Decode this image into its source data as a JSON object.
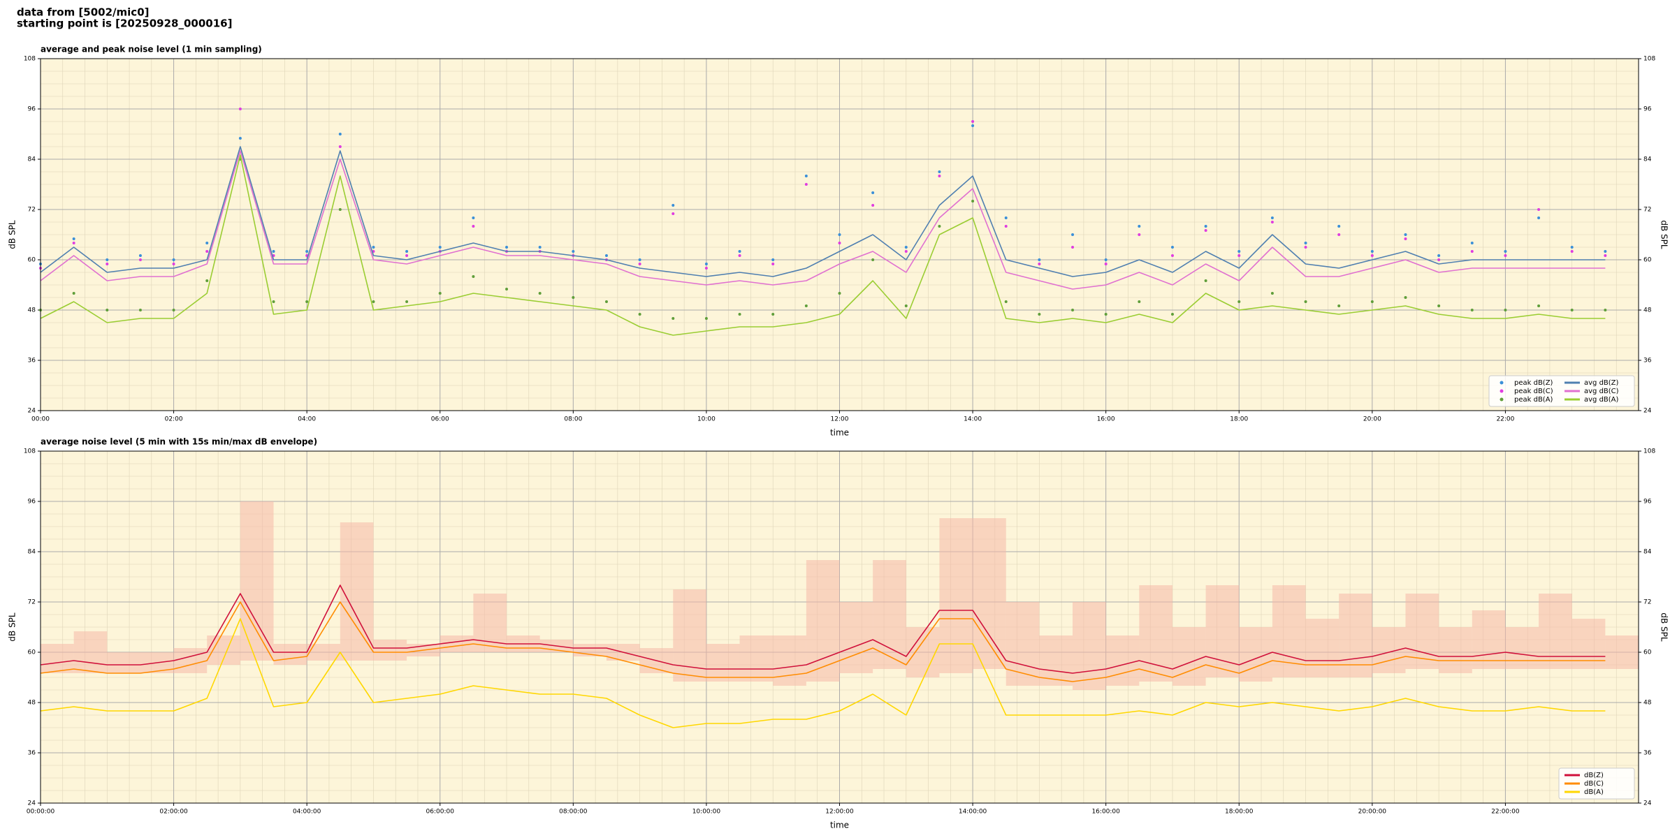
{
  "header": [
    "data from [5002/mic0]",
    "starting point is [20250928_000016]"
  ],
  "chart_data": [
    {
      "type": "line",
      "title": "average and peak noise level (1 min sampling)",
      "x_label": "time",
      "y_label": "dB SPL",
      "background": "#fdf5d9",
      "grid": true,
      "minor_grid": true,
      "legend": "lower right",
      "xlim": [
        "00:00",
        "24:00"
      ],
      "xticks": [
        "00:00",
        "02:00",
        "04:00",
        "06:00",
        "08:00",
        "10:00",
        "12:00",
        "14:00",
        "16:00",
        "18:00",
        "20:00",
        "22:00"
      ],
      "ylim": [
        24,
        108
      ],
      "yticks": [
        24,
        36,
        48,
        60,
        72,
        84,
        96,
        108
      ],
      "x": [
        "00:00",
        "00:30",
        "01:00",
        "01:30",
        "02:00",
        "02:30",
        "03:00",
        "03:30",
        "04:00",
        "04:30",
        "05:00",
        "05:30",
        "06:00",
        "06:30",
        "07:00",
        "07:30",
        "08:00",
        "08:30",
        "09:00",
        "09:30",
        "10:00",
        "10:30",
        "11:00",
        "11:30",
        "12:00",
        "12:30",
        "13:00",
        "13:30",
        "14:00",
        "14:30",
        "15:00",
        "15:30",
        "16:00",
        "16:30",
        "17:00",
        "17:30",
        "18:00",
        "18:30",
        "19:00",
        "19:30",
        "20:00",
        "20:30",
        "21:00",
        "21:30",
        "22:00",
        "22:30",
        "23:00",
        "23:30"
      ],
      "series": [
        {
          "name": "peak dB(Z)",
          "type": "scatter",
          "color": "#3a8fd8",
          "values": [
            59,
            65,
            60,
            61,
            60,
            64,
            89,
            62,
            62,
            90,
            63,
            62,
            63,
            70,
            63,
            63,
            62,
            61,
            60,
            73,
            59,
            62,
            60,
            80,
            66,
            76,
            63,
            81,
            92,
            70,
            60,
            66,
            60,
            68,
            63,
            68,
            62,
            70,
            64,
            68,
            62,
            66,
            61,
            64,
            62,
            70,
            63,
            62
          ]
        },
        {
          "name": "peak dB(C)",
          "type": "scatter",
          "color": "#e03ce0",
          "values": [
            58,
            64,
            59,
            60,
            59,
            62,
            96,
            61,
            61,
            87,
            62,
            61,
            62,
            68,
            62,
            62,
            61,
            60,
            59,
            71,
            58,
            61,
            59,
            78,
            64,
            73,
            62,
            80,
            93,
            68,
            59,
            63,
            59,
            66,
            61,
            67,
            61,
            69,
            63,
            66,
            61,
            65,
            60,
            62,
            61,
            72,
            62,
            61
          ]
        },
        {
          "name": "peak dB(A)",
          "type": "scatter",
          "color": "#5f9e3a",
          "values": [
            48,
            52,
            48,
            48,
            48,
            55,
            84,
            50,
            50,
            72,
            50,
            50,
            52,
            56,
            53,
            52,
            51,
            50,
            47,
            46,
            46,
            47,
            47,
            49,
            52,
            60,
            49,
            68,
            74,
            50,
            47,
            48,
            47,
            50,
            47,
            55,
            50,
            52,
            50,
            49,
            50,
            51,
            49,
            48,
            48,
            49,
            48,
            48
          ]
        },
        {
          "name": "avg dB(Z)",
          "type": "line",
          "color": "#4f7fb0",
          "values": [
            57,
            63,
            57,
            58,
            58,
            60,
            87,
            60,
            60,
            86,
            61,
            60,
            62,
            64,
            62,
            62,
            61,
            60,
            58,
            57,
            56,
            57,
            56,
            58,
            62,
            66,
            60,
            73,
            80,
            60,
            58,
            56,
            57,
            60,
            57,
            62,
            58,
            66,
            59,
            58,
            60,
            62,
            59,
            60,
            60,
            60,
            60,
            60
          ]
        },
        {
          "name": "avg dB(C)",
          "type": "line",
          "color": "#e070d0",
          "values": [
            55,
            61,
            55,
            56,
            56,
            59,
            86,
            59,
            59,
            84,
            60,
            59,
            61,
            63,
            61,
            61,
            60,
            59,
            56,
            55,
            54,
            55,
            54,
            55,
            59,
            62,
            57,
            70,
            77,
            57,
            55,
            53,
            54,
            57,
            54,
            59,
            55,
            63,
            56,
            56,
            58,
            60,
            57,
            58,
            58,
            58,
            58,
            58
          ]
        },
        {
          "name": "avg dB(A)",
          "type": "line",
          "color": "#9acd32",
          "values": [
            46,
            50,
            45,
            46,
            46,
            52,
            85,
            47,
            48,
            80,
            48,
            49,
            50,
            52,
            51,
            50,
            49,
            48,
            44,
            42,
            43,
            44,
            44,
            45,
            47,
            55,
            46,
            66,
            70,
            46,
            45,
            46,
            45,
            47,
            45,
            52,
            48,
            49,
            48,
            47,
            48,
            49,
            47,
            46,
            46,
            47,
            46,
            46
          ]
        }
      ]
    },
    {
      "type": "line",
      "title": "average noise level (5 min with 15s min/max dB envelope)",
      "x_label": "time",
      "y_label": "dB SPL",
      "background": "#fdf5d9",
      "grid": true,
      "minor_grid": true,
      "legend": "lower right",
      "xlim": [
        "00:00:00",
        "24:00:00"
      ],
      "xticks": [
        "00:00:00",
        "02:00:00",
        "04:00:00",
        "06:00:00",
        "08:00:00",
        "10:00:00",
        "12:00:00",
        "14:00:00",
        "16:00:00",
        "18:00:00",
        "20:00:00",
        "22:00:00"
      ],
      "ylim": [
        24,
        108
      ],
      "yticks": [
        24,
        36,
        48,
        60,
        72,
        84,
        96,
        108
      ],
      "x": [
        "00:00:00",
        "00:30:00",
        "01:00:00",
        "01:30:00",
        "02:00:00",
        "02:30:00",
        "03:00:00",
        "03:30:00",
        "04:00:00",
        "04:30:00",
        "05:00:00",
        "05:30:00",
        "06:00:00",
        "06:30:00",
        "07:00:00",
        "07:30:00",
        "08:00:00",
        "08:30:00",
        "09:00:00",
        "09:30:00",
        "10:00:00",
        "10:30:00",
        "11:00:00",
        "11:30:00",
        "12:00:00",
        "12:30:00",
        "13:00:00",
        "13:30:00",
        "14:00:00",
        "14:30:00",
        "15:00:00",
        "15:30:00",
        "16:00:00",
        "16:30:00",
        "17:00:00",
        "17:30:00",
        "18:00:00",
        "18:30:00",
        "19:00:00",
        "19:30:00",
        "20:00:00",
        "20:30:00",
        "21:00:00",
        "21:30:00",
        "22:00:00",
        "22:30:00",
        "23:00:00",
        "23:30:00"
      ],
      "envelope": {
        "color": "#f6b8a8",
        "min": [
          55,
          55,
          55,
          55,
          55,
          57,
          58,
          57,
          58,
          58,
          58,
          59,
          60,
          60,
          60,
          60,
          59,
          58,
          55,
          53,
          53,
          53,
          52,
          53,
          55,
          56,
          54,
          55,
          56,
          52,
          52,
          51,
          52,
          53,
          52,
          54,
          53,
          54,
          54,
          54,
          55,
          56,
          55,
          56,
          56,
          56,
          56,
          56
        ],
        "max": [
          62,
          65,
          60,
          60,
          61,
          64,
          96,
          62,
          62,
          91,
          63,
          62,
          64,
          74,
          64,
          63,
          62,
          62,
          61,
          75,
          62,
          64,
          64,
          82,
          72,
          82,
          66,
          92,
          92,
          72,
          64,
          72,
          64,
          76,
          66,
          76,
          66,
          76,
          68,
          74,
          66,
          74,
          66,
          70,
          66,
          74,
          68,
          64
        ]
      },
      "series": [
        {
          "name": "dB(Z)",
          "type": "line",
          "color": "#d0103a",
          "values": [
            57,
            58,
            57,
            57,
            58,
            60,
            74,
            60,
            60,
            76,
            61,
            61,
            62,
            63,
            62,
            62,
            61,
            61,
            59,
            57,
            56,
            56,
            56,
            57,
            60,
            63,
            59,
            70,
            70,
            58,
            56,
            55,
            56,
            58,
            56,
            59,
            57,
            60,
            58,
            58,
            59,
            61,
            59,
            59,
            60,
            59,
            59,
            59
          ]
        },
        {
          "name": "dB(C)",
          "type": "line",
          "color": "#ff8c00",
          "values": [
            55,
            56,
            55,
            55,
            56,
            58,
            72,
            58,
            59,
            72,
            60,
            60,
            61,
            62,
            61,
            61,
            60,
            59,
            57,
            55,
            54,
            54,
            54,
            55,
            58,
            61,
            57,
            68,
            68,
            56,
            54,
            53,
            54,
            56,
            54,
            57,
            55,
            58,
            57,
            57,
            57,
            59,
            58,
            58,
            58,
            58,
            58,
            58
          ]
        },
        {
          "name": "dB(A)",
          "type": "line",
          "color": "#ffd700",
          "values": [
            46,
            47,
            46,
            46,
            46,
            49,
            68,
            47,
            48,
            60,
            48,
            49,
            50,
            52,
            51,
            50,
            50,
            49,
            45,
            42,
            43,
            43,
            44,
            44,
            46,
            50,
            45,
            62,
            62,
            45,
            45,
            45,
            45,
            46,
            45,
            48,
            47,
            48,
            47,
            46,
            47,
            49,
            47,
            46,
            46,
            47,
            46,
            46
          ]
        }
      ]
    }
  ]
}
